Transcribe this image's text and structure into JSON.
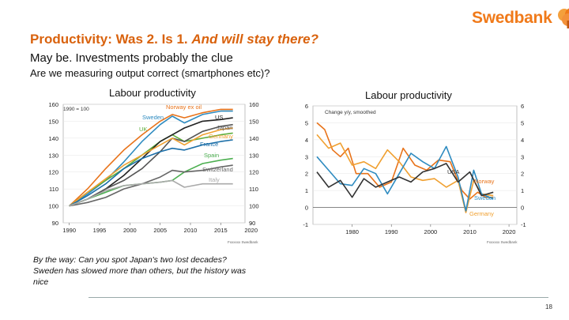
{
  "brand": {
    "name": "Swedbank",
    "accent": "#f07a1a"
  },
  "header": {
    "title_plain": "Productivity: Was 2. Is 1. ",
    "title_italic": "And will stay there?",
    "subtitle": "May be. Investments probably the clue",
    "question": "Are we measuring output correct (smartphones etc)?"
  },
  "note": {
    "line1": "By the way: Can you spot Japan's two lost decades?",
    "line2": "Sweden has slowed more than others, but the history was",
    "line3": "nice"
  },
  "page_number": "18",
  "chart_data": [
    {
      "type": "line",
      "title": "Labour productivity",
      "index_note": "1990 = 100",
      "source": "Fxxxxxx  Swedbank",
      "ylim": [
        90,
        160
      ],
      "yticks": [
        "90",
        "100",
        "110",
        "120",
        "130",
        "140",
        "150",
        "160"
      ],
      "xlim": [
        1989,
        2019
      ],
      "xticks": [
        "1990",
        "1995",
        "2000",
        "2005",
        "2010",
        "2015",
        "2020"
      ],
      "series": [
        {
          "name": "Norway ex oil",
          "color": "#e8731a",
          "x": [
            1990,
            1993,
            1996,
            1999,
            2002,
            2005,
            2007,
            2009,
            2012,
            2015,
            2017
          ],
          "y": [
            100,
            110,
            122,
            133,
            142,
            150,
            154,
            152,
            155,
            157,
            157
          ]
        },
        {
          "name": "Sweden",
          "color": "#2e8bc0",
          "x": [
            1990,
            1993,
            1996,
            1999,
            2002,
            2005,
            2007,
            2009,
            2012,
            2015,
            2017
          ],
          "y": [
            100,
            107,
            115,
            126,
            138,
            148,
            153,
            149,
            154,
            156,
            156
          ]
        },
        {
          "name": "UK",
          "color": "#5fae3c",
          "x": [
            1990,
            1993,
            1996,
            1999,
            2002,
            2005,
            2007,
            2009,
            2012,
            2015,
            2017
          ],
          "y": [
            100,
            108,
            115,
            122,
            130,
            138,
            142,
            138,
            140,
            142,
            143
          ]
        },
        {
          "name": "US",
          "color": "#222222",
          "x": [
            1990,
            1993,
            1996,
            1999,
            2002,
            2005,
            2007,
            2009,
            2012,
            2015,
            2017
          ],
          "y": [
            100,
            104,
            110,
            118,
            128,
            138,
            142,
            146,
            150,
            151,
            152
          ]
        },
        {
          "name": "Japan",
          "color": "#555555",
          "x": [
            1990,
            1993,
            1996,
            1999,
            2002,
            2005,
            2007,
            2009,
            2012,
            2015,
            2017
          ],
          "y": [
            100,
            104,
            110,
            115,
            122,
            132,
            140,
            138,
            144,
            147,
            148
          ]
        },
        {
          "name": "Germany",
          "color": "#f0a030",
          "x": [
            1990,
            1993,
            1996,
            1999,
            2002,
            2005,
            2007,
            2009,
            2012,
            2015,
            2017
          ],
          "y": [
            100,
            108,
            116,
            124,
            130,
            136,
            140,
            136,
            142,
            145,
            146
          ]
        },
        {
          "name": "France",
          "color": "#1c6fa8",
          "x": [
            1990,
            1993,
            1996,
            1999,
            2002,
            2005,
            2007,
            2009,
            2012,
            2015,
            2017
          ],
          "y": [
            100,
            106,
            113,
            122,
            128,
            132,
            134,
            133,
            136,
            138,
            139
          ]
        },
        {
          "name": "Spain",
          "color": "#4caf50",
          "x": [
            1990,
            1993,
            1996,
            1999,
            2002,
            2005,
            2007,
            2009,
            2012,
            2015,
            2017
          ],
          "y": [
            100,
            104,
            108,
            112,
            113,
            114,
            115,
            120,
            125,
            127,
            128
          ]
        },
        {
          "name": "Switzerland",
          "color": "#666666",
          "x": [
            1990,
            1993,
            1996,
            1999,
            2002,
            2005,
            2007,
            2009,
            2012,
            2015,
            2017
          ],
          "y": [
            100,
            102,
            105,
            110,
            113,
            117,
            121,
            120,
            121,
            123,
            124
          ]
        },
        {
          "name": "Italy",
          "color": "#aaaaaa",
          "x": [
            1990,
            1993,
            1996,
            1999,
            2002,
            2005,
            2007,
            2009,
            2012,
            2015,
            2017
          ],
          "y": [
            100,
            104,
            109,
            112,
            113,
            114,
            115,
            111,
            113,
            113,
            113
          ]
        }
      ]
    },
    {
      "type": "line",
      "title": "Labour productivity",
      "index_note": "Change y/y, smoothed",
      "source": "Fxxxxxx  Swedbank",
      "ylim": [
        -1,
        6
      ],
      "yticks": [
        "-1",
        "0",
        "1",
        "2",
        "3",
        "4",
        "5",
        "6"
      ],
      "xlim": [
        1970,
        2022
      ],
      "xticks": [
        "1980",
        "1990",
        "2000",
        "2010",
        "2020"
      ],
      "series": [
        {
          "name": "Norway",
          "color": "#e8731a",
          "x": [
            1971,
            1973,
            1975,
            1977,
            1979,
            1981,
            1984,
            1987,
            1990,
            1993,
            1996,
            1999,
            2002,
            2005,
            2008,
            2010,
            2012,
            2014,
            2016
          ],
          "y": [
            5,
            4.6,
            3.4,
            3,
            3.5,
            2,
            2,
            1.2,
            1.5,
            3.5,
            2.5,
            2.2,
            2.8,
            2.7,
            1,
            0.5,
            0.9,
            0.6,
            0.6
          ]
        },
        {
          "name": "Germany",
          "color": "#f0a030",
          "x": [
            1971,
            1974,
            1977,
            1980,
            1983,
            1986,
            1989,
            1992,
            1995,
            1998,
            2001,
            2004,
            2007,
            2009,
            2011,
            2013,
            2016
          ],
          "y": [
            4.3,
            3.5,
            3.8,
            2.5,
            2.7,
            2.3,
            3.4,
            2.7,
            1.8,
            1.6,
            1.7,
            1.2,
            1.6,
            -0.3,
            1.6,
            0.8,
            0.7
          ]
        },
        {
          "name": "Sweden",
          "color": "#2e8bc0",
          "x": [
            1971,
            1974,
            1977,
            1980,
            1983,
            1986,
            1989,
            1992,
            1995,
            1998,
            2001,
            2004,
            2007,
            2009,
            2011,
            2013,
            2016
          ],
          "y": [
            3,
            2.2,
            1.4,
            1.3,
            2.3,
            2,
            0.8,
            2,
            3.2,
            2.7,
            2.3,
            3.6,
            1.8,
            -0.2,
            2.2,
            0.8,
            0.5
          ]
        },
        {
          "name": "USA",
          "color": "#333333",
          "x": [
            1971,
            1974,
            1977,
            1980,
            1983,
            1986,
            1989,
            1992,
            1995,
            1998,
            2001,
            2004,
            2007,
            2010,
            2013,
            2016
          ],
          "y": [
            2.1,
            1.2,
            1.6,
            0.6,
            1.7,
            1.2,
            1.5,
            1.8,
            1.5,
            2.1,
            2.3,
            2.6,
            1.5,
            2.1,
            0.7,
            0.9
          ]
        }
      ]
    }
  ]
}
